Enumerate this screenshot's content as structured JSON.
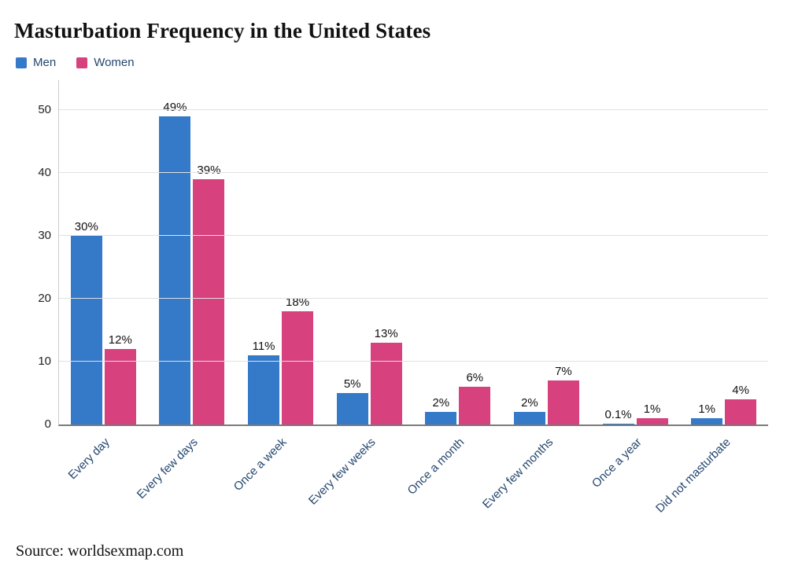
{
  "header": {
    "title": "Masturbation Frequency in the United States"
  },
  "legend": [
    {
      "label": "Men",
      "color": "#3579c9"
    },
    {
      "label": "Women",
      "color": "#d6417e"
    }
  ],
  "source": "Source: worldsexmap.com",
  "chart_data": {
    "type": "bar",
    "title": "Masturbation Frequency in the United States",
    "categories": [
      "Every day",
      "Every few days",
      "Once a week",
      "Every few weeks",
      "Once a month",
      "Every few months",
      "Once a year",
      "Did not masturbate"
    ],
    "series": [
      {
        "name": "Men",
        "color": "#3579c9",
        "values": [
          30,
          49,
          11,
          5,
          2,
          2,
          0.1,
          1
        ],
        "labels": [
          "30%",
          "49%",
          "11%",
          "5%",
          "2%",
          "2%",
          "0.1%",
          "1%"
        ]
      },
      {
        "name": "Women",
        "color": "#d6417e",
        "values": [
          12,
          39,
          18,
          13,
          6,
          7,
          1,
          4
        ],
        "labels": [
          "12%",
          "39%",
          "18%",
          "13%",
          "6%",
          "7%",
          "1%",
          "4%"
        ]
      }
    ],
    "xlabel": "",
    "ylabel": "",
    "y_ticks": [
      0,
      10,
      20,
      30,
      40,
      50
    ],
    "ylim": [
      0,
      54
    ],
    "grid": true,
    "legend_position": "top-left"
  }
}
